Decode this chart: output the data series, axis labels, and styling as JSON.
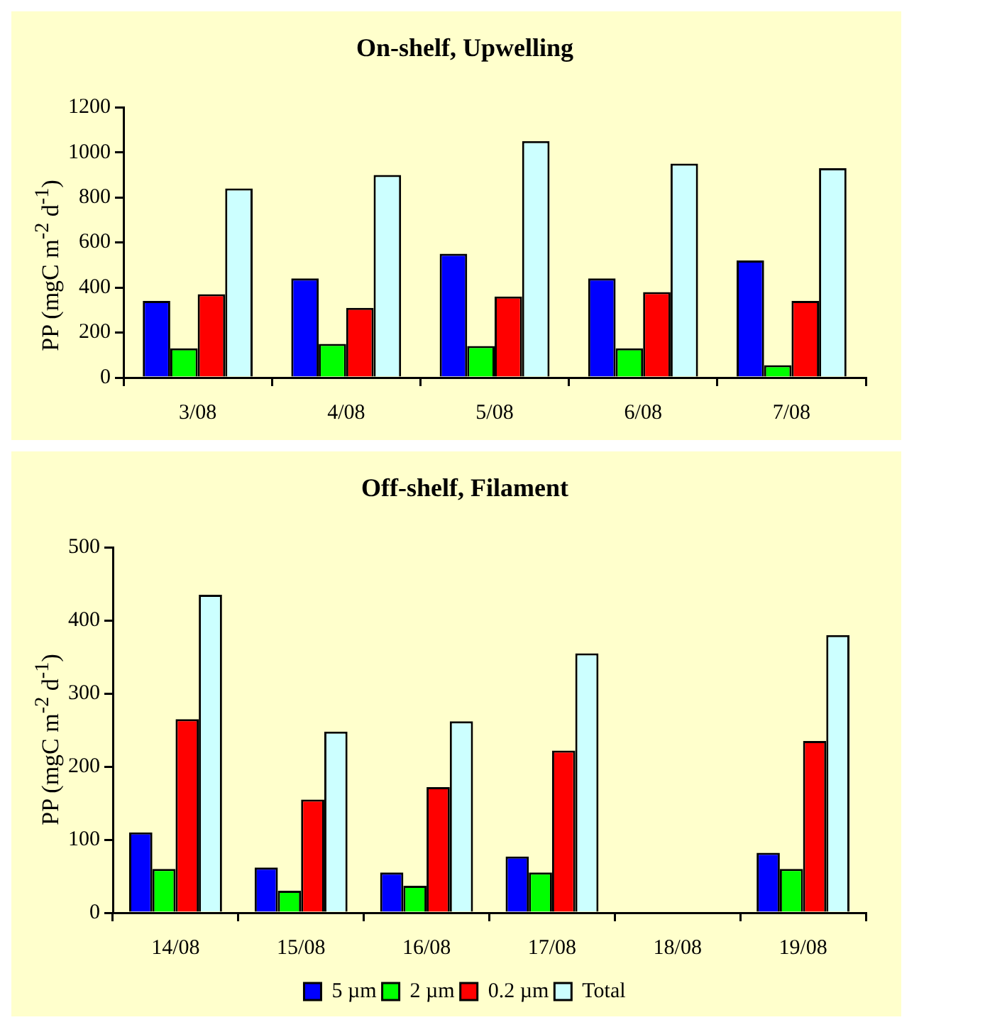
{
  "chart_data": [
    {
      "type": "bar",
      "title": "On-shelf, Upwelling",
      "ylabel": "PP (mgC m$^{-2}$ d$^{-1}$)",
      "categories": [
        "3/08",
        "4/08",
        "5/08",
        "6/08",
        "7/08"
      ],
      "series": [
        {
          "color": "#0000ff",
          "values": [
            340,
            440,
            550,
            440,
            520
          ]
        },
        {
          "color": "#00ff00",
          "values": [
            130,
            150,
            140,
            130,
            55
          ]
        },
        {
          "color": "#ff0000",
          "values": [
            370,
            310,
            360,
            380,
            340
          ]
        },
        {
          "color": "#ccffff",
          "values": [
            840,
            900,
            1050,
            950,
            930
          ]
        }
      ],
      "ylim": [
        0,
        1200
      ],
      "yticks": [
        0,
        200,
        400,
        600,
        800,
        1000,
        1200
      ],
      "grid": false,
      "legend": false
    },
    {
      "type": "bar",
      "title": "Off-shelf, Filament",
      "ylabel": "PP (mgC m$^{-2}$ d$^{-1}$)",
      "categories": [
        "14/08",
        "15/08",
        "16/08",
        "17/08",
        "18/08",
        "19/08"
      ],
      "series": [
        {
          "name": "5 µm",
          "color": "#0000ff",
          "values": [
            110,
            62,
            55,
            77,
            null,
            82
          ]
        },
        {
          "name": "2 µm",
          "color": "#00ff00",
          "values": [
            60,
            30,
            37,
            55,
            null,
            60
          ]
        },
        {
          "name": "0.2 µm",
          "color": "#ff0000",
          "values": [
            265,
            155,
            172,
            222,
            null,
            235
          ]
        },
        {
          "name": "Total",
          "color": "#ccffff",
          "values": [
            435,
            248,
            262,
            355,
            null,
            380
          ]
        }
      ],
      "ylim": [
        0,
        500
      ],
      "yticks": [
        0,
        100,
        200,
        300,
        400,
        500
      ],
      "grid": false,
      "legend": "bottom"
    }
  ]
}
